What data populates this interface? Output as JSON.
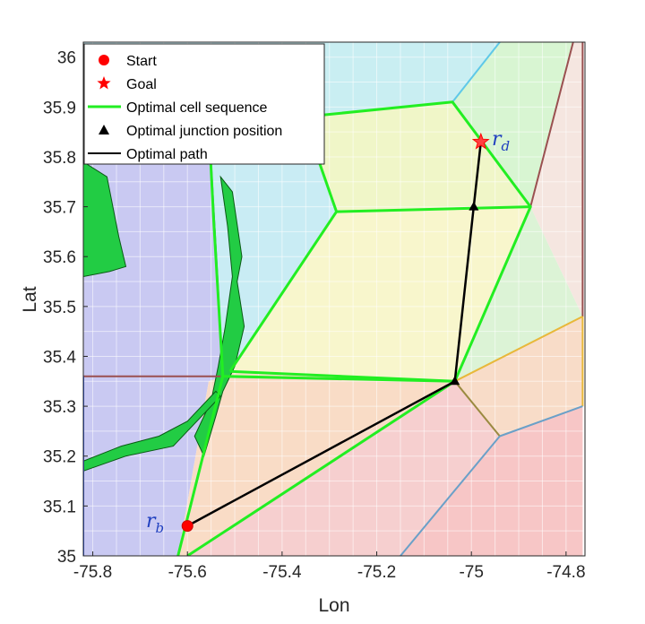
{
  "chart_data": {
    "type": "scatter",
    "xlabel": "Lon",
    "ylabel": "Lat",
    "xlim": [
      -75.82,
      -74.76
    ],
    "ylim": [
      35.0,
      36.03
    ],
    "xticks": [
      -75.8,
      -75.6,
      -75.4,
      -75.2,
      -75.0,
      -74.8
    ],
    "xtick_labels": [
      "-75.8",
      "-75.6",
      "-75.4",
      "-75.2",
      "-75",
      "-74.8"
    ],
    "yticks": [
      35.0,
      35.1,
      35.2,
      35.3,
      35.4,
      35.5,
      35.6,
      35.7,
      35.8,
      35.9,
      36.0
    ],
    "ytick_labels": [
      "35",
      "35.1",
      "35.2",
      "35.3",
      "35.4",
      "35.5",
      "35.6",
      "35.7",
      "35.8",
      "35.9",
      "36"
    ],
    "grid": true,
    "legend_position": "top-left",
    "legend": [
      {
        "label": "Start",
        "marker": "circle",
        "color": "#ff0000"
      },
      {
        "label": "Goal",
        "marker": "star",
        "color": "#ff0000"
      },
      {
        "label": "Optimal cell sequence",
        "marker": "line",
        "color": "#22ee22"
      },
      {
        "label": "Optimal junction position",
        "marker": "triangle",
        "color": "#000000"
      },
      {
        "label": "Optimal path",
        "marker": "line",
        "color": "#000000"
      }
    ],
    "cells": [
      {
        "color": "#c9c9f2",
        "points": [
          [
            -75.82,
            35.0
          ],
          [
            -75.62,
            35.0
          ],
          [
            -75.555,
            35.35
          ],
          [
            -75.525,
            35.36
          ],
          [
            -75.545,
            35.68
          ],
          [
            -75.555,
            35.87
          ],
          [
            -75.82,
            35.87
          ]
        ]
      },
      {
        "color": "#c9ecf4",
        "points": [
          [
            -75.555,
            35.87
          ],
          [
            -75.545,
            35.68
          ],
          [
            -75.525,
            35.36
          ],
          [
            -75.51,
            35.37
          ],
          [
            -75.285,
            35.69
          ],
          [
            -75.355,
            35.88
          ],
          [
            -75.455,
            35.97
          ],
          [
            -75.405,
            36.03
          ],
          [
            -75.82,
            36.03
          ],
          [
            -75.82,
            35.87
          ]
        ]
      },
      {
        "color": "#c9eef2",
        "points": [
          [
            -75.355,
            35.88
          ],
          [
            -75.04,
            35.91
          ],
          [
            -74.94,
            36.03
          ],
          [
            -75.405,
            36.03
          ],
          [
            -75.455,
            35.97
          ]
        ]
      },
      {
        "color": "#f0f6c8",
        "points": [
          [
            -75.355,
            35.88
          ],
          [
            -75.04,
            35.91
          ],
          [
            -74.875,
            35.7
          ],
          [
            -75.285,
            35.69
          ]
        ]
      },
      {
        "color": "#d8f5d2",
        "points": [
          [
            -75.04,
            35.91
          ],
          [
            -74.94,
            36.03
          ],
          [
            -74.785,
            36.03
          ],
          [
            -74.875,
            35.7
          ]
        ]
      },
      {
        "color": "#f5e6e0",
        "points": [
          [
            -74.785,
            36.03
          ],
          [
            -74.765,
            36.03
          ],
          [
            -74.765,
            35.48
          ],
          [
            -74.875,
            35.7
          ]
        ]
      },
      {
        "color": "#f8f6cc",
        "points": [
          [
            -75.285,
            35.69
          ],
          [
            -74.875,
            35.7
          ],
          [
            -75.035,
            35.35
          ],
          [
            -75.51,
            35.37
          ]
        ]
      },
      {
        "color": "#dcf3d6",
        "points": [
          [
            -74.875,
            35.7
          ],
          [
            -74.765,
            35.48
          ],
          [
            -74.765,
            35.48
          ],
          [
            -75.035,
            35.35
          ]
        ]
      },
      {
        "color": "#f9e2c6",
        "points": [
          [
            -75.51,
            35.37
          ],
          [
            -75.035,
            35.35
          ],
          [
            -75.525,
            35.36
          ]
        ]
      },
      {
        "color": "#f9dcc6",
        "points": [
          [
            -75.525,
            35.36
          ],
          [
            -75.035,
            35.35
          ],
          [
            -75.6,
            35.0
          ],
          [
            -75.62,
            35.0
          ],
          [
            -75.555,
            35.35
          ]
        ]
      },
      {
        "color": "#f8dcc8",
        "points": [
          [
            -75.035,
            35.35
          ],
          [
            -74.765,
            35.48
          ],
          [
            -74.765,
            35.3
          ],
          [
            -74.94,
            35.24
          ]
        ]
      },
      {
        "color": "#f6cfcf",
        "points": [
          [
            -75.035,
            35.35
          ],
          [
            -74.94,
            35.24
          ],
          [
            -75.15,
            35.0
          ],
          [
            -75.6,
            35.0
          ]
        ]
      },
      {
        "color": "#f7c6c6",
        "points": [
          [
            -74.94,
            35.24
          ],
          [
            -74.765,
            35.3
          ],
          [
            -74.765,
            35.0
          ],
          [
            -75.15,
            35.0
          ]
        ]
      }
    ],
    "boundaries": [
      {
        "color": "#9a5050",
        "points": [
          [
            -75.82,
            35.36
          ],
          [
            -75.53,
            35.36
          ]
        ]
      },
      {
        "color": "#9a5050",
        "points": [
          [
            -74.765,
            36.03
          ],
          [
            -74.765,
            35.48
          ]
        ]
      },
      {
        "color": "#9a5050",
        "points": [
          [
            -74.785,
            36.03
          ],
          [
            -74.875,
            35.7
          ]
        ]
      },
      {
        "color": "#5fc8e8",
        "points": [
          [
            -75.04,
            35.91
          ],
          [
            -74.94,
            36.03
          ]
        ]
      },
      {
        "color": "#e8b83a",
        "points": [
          [
            -75.035,
            35.35
          ],
          [
            -74.765,
            35.48
          ]
        ]
      },
      {
        "color": "#e8b83a",
        "points": [
          [
            -74.765,
            35.48
          ],
          [
            -74.765,
            35.3
          ]
        ]
      },
      {
        "color": "#9a8a40",
        "points": [
          [
            -75.035,
            35.35
          ],
          [
            -74.94,
            35.24
          ]
        ]
      },
      {
        "color": "#6aa0c8",
        "points": [
          [
            -74.94,
            35.24
          ],
          [
            -74.765,
            35.3
          ]
        ]
      },
      {
        "color": "#6aa0c8",
        "points": [
          [
            -74.94,
            35.24
          ],
          [
            -75.15,
            35.0
          ]
        ]
      },
      {
        "color": "#3355dd",
        "points": [
          [
            -75.82,
            35.36
          ],
          [
            -75.82,
            35.0
          ]
        ]
      },
      {
        "color": "#5555aa",
        "points": [
          [
            -75.555,
            35.87
          ],
          [
            -75.525,
            35.36
          ]
        ]
      }
    ],
    "optimal_cell_sequence": [
      [
        [
          -75.62,
          35.0
        ],
        [
          -75.525,
          35.36
        ],
        [
          -75.545,
          35.68
        ],
        [
          -75.555,
          35.87
        ]
      ],
      [
        [
          -75.51,
          35.37
        ],
        [
          -75.285,
          35.69
        ],
        [
          -75.355,
          35.88
        ],
        [
          -75.455,
          35.97
        ]
      ],
      [
        [
          -75.355,
          35.88
        ],
        [
          -75.04,
          35.91
        ],
        [
          -74.875,
          35.7
        ],
        [
          -75.285,
          35.69
        ]
      ],
      [
        [
          -74.875,
          35.7
        ],
        [
          -75.035,
          35.35
        ],
        [
          -75.51,
          35.37
        ]
      ],
      [
        [
          -75.035,
          35.35
        ],
        [
          -75.6,
          35.0
        ]
      ],
      [
        [
          -75.035,
          35.35
        ],
        [
          -75.525,
          35.36
        ]
      ]
    ],
    "land_polygons": [
      [
        [
          -75.82,
          35.79
        ],
        [
          -75.77,
          35.76
        ],
        [
          -75.745,
          35.64
        ],
        [
          -75.73,
          35.58
        ],
        [
          -75.765,
          35.57
        ],
        [
          -75.82,
          35.56
        ]
      ],
      [
        [
          -75.53,
          35.76
        ],
        [
          -75.505,
          35.73
        ],
        [
          -75.485,
          35.6
        ],
        [
          -75.495,
          35.55
        ],
        [
          -75.48,
          35.46
        ],
        [
          -75.5,
          35.38
        ],
        [
          -75.525,
          35.33
        ],
        [
          -75.54,
          35.28
        ],
        [
          -75.565,
          35.2
        ],
        [
          -75.585,
          35.24
        ],
        [
          -75.55,
          35.31
        ],
        [
          -75.535,
          35.38
        ],
        [
          -75.52,
          35.46
        ],
        [
          -75.505,
          35.56
        ],
        [
          -75.515,
          35.66
        ]
      ],
      [
        [
          -75.53,
          35.32
        ],
        [
          -75.63,
          35.22
        ],
        [
          -75.73,
          35.2
        ],
        [
          -75.82,
          35.17
        ],
        [
          -75.82,
          35.19
        ],
        [
          -75.74,
          35.22
        ],
        [
          -75.66,
          35.24
        ],
        [
          -75.6,
          35.27
        ],
        [
          -75.54,
          35.33
        ]
      ]
    ],
    "start": {
      "lon": -75.6,
      "lat": 35.06
    },
    "goal": {
      "lon": -74.98,
      "lat": 35.83
    },
    "junctions": [
      [
        -74.995,
        35.7
      ],
      [
        -75.035,
        35.35
      ]
    ],
    "path": [
      [
        -75.6,
        35.06
      ],
      [
        -75.035,
        35.35
      ],
      [
        -74.995,
        35.7
      ],
      [
        -74.98,
        35.83
      ]
    ],
    "annotations": {
      "start_label": {
        "base": "r",
        "sub": "b",
        "color": "#1f3fbf"
      },
      "goal_label": {
        "base": "r",
        "sub": "d",
        "color": "#1f3fbf"
      }
    }
  }
}
